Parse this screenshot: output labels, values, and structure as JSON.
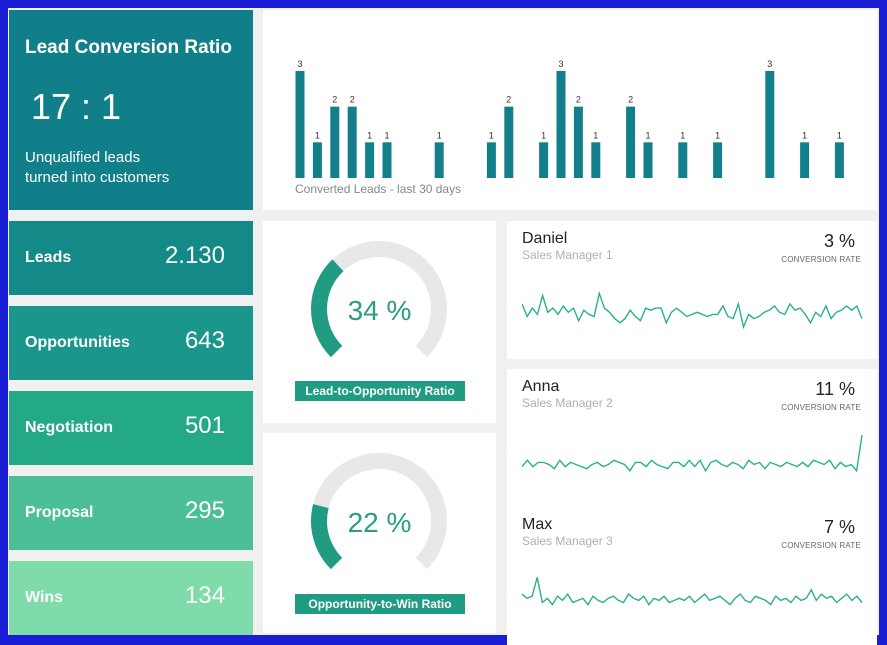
{
  "kpi": {
    "title": "Lead Conversion Ratio",
    "ratio": "17 : 1",
    "subtitle_line1": "Unqualified leads",
    "subtitle_line2": "turned into customers"
  },
  "funnel": [
    {
      "label": "Leads",
      "value": "2.130",
      "color": "#138a87"
    },
    {
      "label": "Opportunities",
      "value": "643",
      "color": "#1a968c"
    },
    {
      "label": "Negotiation",
      "value": "501",
      "color": "#23a986"
    },
    {
      "label": "Proposal",
      "value": "295",
      "color": "#4cbf96"
    },
    {
      "label": "Wins",
      "value": "134",
      "color": "#7fdcaa"
    }
  ],
  "gauges": [
    {
      "percent": 34,
      "percent_text": "34 %",
      "label": "Lead-to-Opportunity Ratio"
    },
    {
      "percent": 22,
      "percent_text": "22 %",
      "label": "Opportunity-to-Win Ratio"
    }
  ],
  "reps": [
    {
      "name": "Daniel",
      "role": "Sales Manager 1",
      "rate": "3 %",
      "rate_label": "CONVERSION RATE",
      "spark": [
        0.55,
        0.25,
        0.45,
        0.3,
        0.75,
        0.35,
        0.45,
        0.3,
        0.5,
        0.35,
        0.45,
        0.15,
        0.4,
        0.3,
        0.25,
        0.8,
        0.45,
        0.35,
        0.2,
        0.1,
        0.2,
        0.4,
        0.25,
        0.15,
        0.45,
        0.4,
        0.45,
        0.45,
        0.1,
        0.35,
        0.45,
        0.35,
        0.25,
        0.3,
        0.35,
        0.3,
        0.25,
        0.3,
        0.3,
        0.5,
        0.25,
        0.2,
        0.55,
        0.0,
        0.3,
        0.2,
        0.25,
        0.35,
        0.4,
        0.5,
        0.35,
        0.3,
        0.55,
        0.4,
        0.45,
        0.3,
        0.1,
        0.35,
        0.25,
        0.5,
        0.2,
        0.35,
        0.4,
        0.5,
        0.4,
        0.5,
        0.2
      ]
    },
    {
      "name": "Anna",
      "role": "Sales Manager 2",
      "rate": "11 %",
      "rate_label": "CONVERSION RATE",
      "spark": [
        0.2,
        0.35,
        0.2,
        0.3,
        0.3,
        0.25,
        0.15,
        0.35,
        0.2,
        0.3,
        0.25,
        0.2,
        0.15,
        0.25,
        0.3,
        0.2,
        0.25,
        0.35,
        0.3,
        0.25,
        0.1,
        0.3,
        0.3,
        0.2,
        0.35,
        0.25,
        0.2,
        0.15,
        0.3,
        0.3,
        0.2,
        0.35,
        0.2,
        0.35,
        0.1,
        0.3,
        0.35,
        0.25,
        0.2,
        0.3,
        0.25,
        0.15,
        0.35,
        0.25,
        0.3,
        0.15,
        0.3,
        0.25,
        0.2,
        0.3,
        0.25,
        0.2,
        0.3,
        0.2,
        0.35,
        0.3,
        0.25,
        0.35,
        0.15,
        0.3,
        0.2,
        0.25,
        0.1,
        0.95
      ]
    },
    {
      "name": "Max",
      "role": "Sales Manager 3",
      "rate": "7 %",
      "rate_label": "CONVERSION RATE",
      "spark": [
        0.45,
        0.35,
        0.4,
        0.85,
        0.25,
        0.35,
        0.2,
        0.4,
        0.3,
        0.45,
        0.25,
        0.3,
        0.35,
        0.2,
        0.4,
        0.3,
        0.25,
        0.35,
        0.4,
        0.3,
        0.25,
        0.45,
        0.35,
        0.3,
        0.4,
        0.2,
        0.35,
        0.3,
        0.4,
        0.25,
        0.3,
        0.35,
        0.3,
        0.4,
        0.25,
        0.35,
        0.45,
        0.3,
        0.35,
        0.4,
        0.3,
        0.2,
        0.35,
        0.45,
        0.3,
        0.25,
        0.4,
        0.35,
        0.3,
        0.2,
        0.4,
        0.3,
        0.35,
        0.25,
        0.4,
        0.3,
        0.35,
        0.55,
        0.3,
        0.45,
        0.35,
        0.4,
        0.25,
        0.35,
        0.45,
        0.3,
        0.4,
        0.25
      ]
    }
  ],
  "chart_data": {
    "type": "bar",
    "xlabel": "Converted Leads - last 30 days",
    "ylim": [
      0,
      3
    ],
    "values": [
      3,
      1,
      2,
      2,
      1,
      1,
      0,
      0,
      1,
      0,
      0,
      1,
      2,
      0,
      1,
      3,
      2,
      1,
      0,
      2,
      1,
      0,
      1,
      0,
      1,
      0,
      0,
      3,
      0,
      1,
      0,
      1
    ],
    "color": "#137f8a"
  }
}
